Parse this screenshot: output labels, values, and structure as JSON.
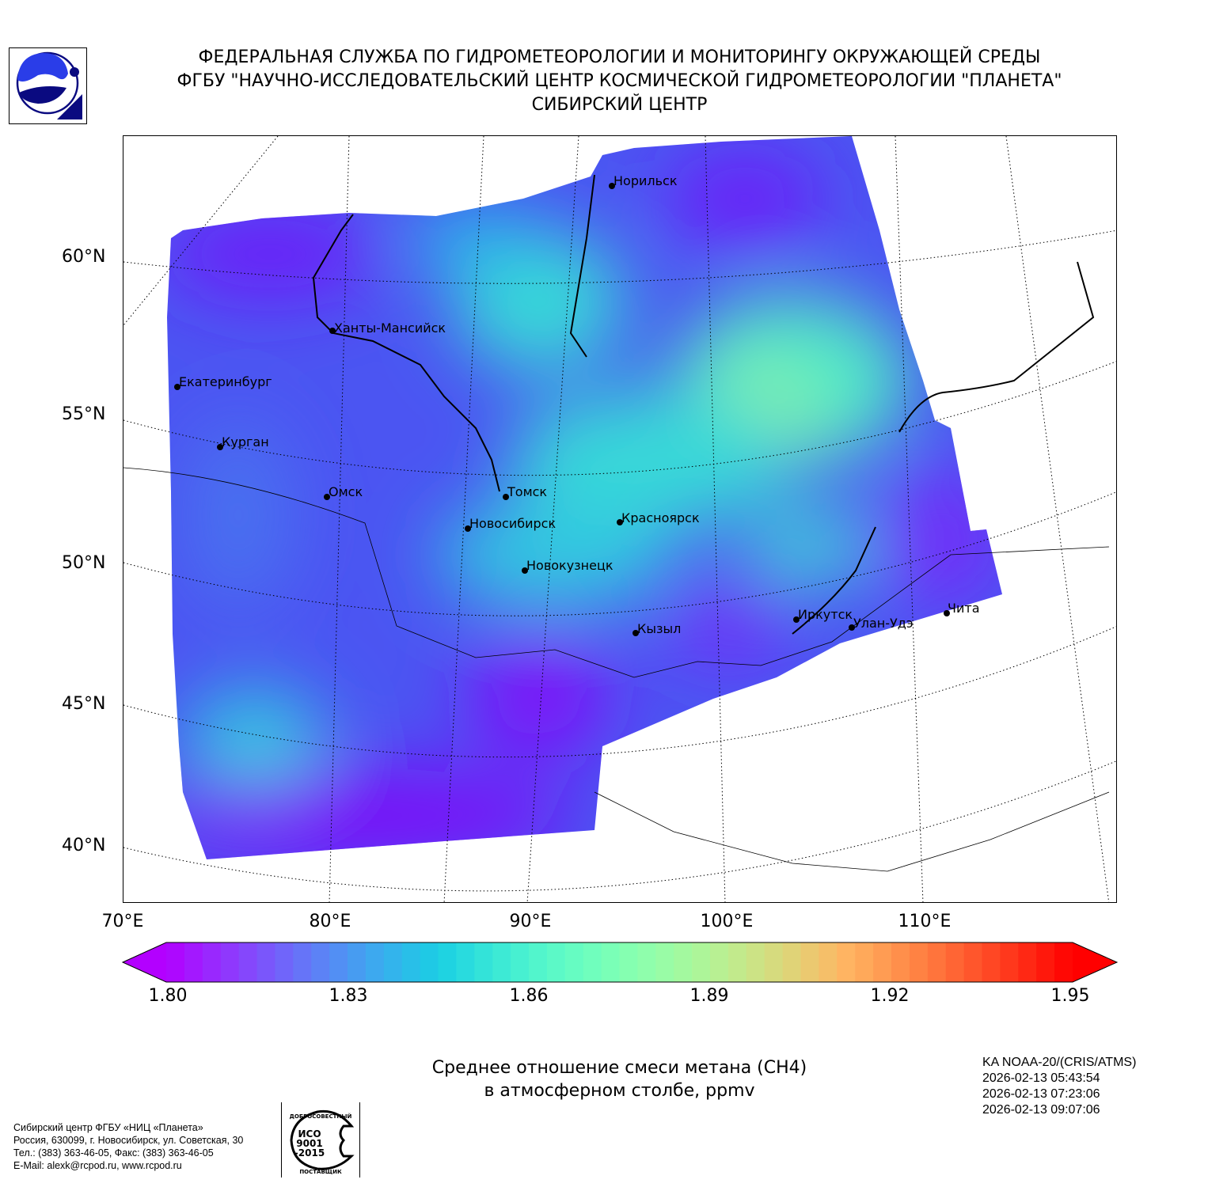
{
  "header": {
    "line1": "ФЕДЕРАЛЬНАЯ СЛУЖБА ПО ГИДРОМЕТЕОРОЛОГИИ И МОНИТОРИНГУ ОКРУЖАЮЩЕЙ СРЕДЫ",
    "line2": "ФГБУ \"НАУЧНО-ИССЛЕДОВАТЕЛЬСКИЙ ЦЕНТР КОСМИЧЕСКОЙ ГИДРОМЕТЕОРОЛОГИИ \"ПЛАНЕТА\"",
    "line3": "СИБИРСКИЙ ЦЕНТР"
  },
  "map": {
    "lat_labels": [
      "60°N",
      "55°N",
      "50°N",
      "45°N",
      "40°N"
    ],
    "lon_labels": [
      "70°E",
      "80°E",
      "90°E",
      "100°E",
      "110°E"
    ],
    "cities": [
      {
        "name": "Норильск"
      },
      {
        "name": "Ханты-Мансийск"
      },
      {
        "name": "Екатеринбург"
      },
      {
        "name": "Курган"
      },
      {
        "name": "Омск"
      },
      {
        "name": "Томск"
      },
      {
        "name": "Новосибирск"
      },
      {
        "name": "Красноярск"
      },
      {
        "name": "Новокузнецк"
      },
      {
        "name": "Кызыл"
      },
      {
        "name": "Иркутск"
      },
      {
        "name": "Улан-Удэ"
      },
      {
        "name": "Чита"
      }
    ]
  },
  "colorbar": {
    "min": 1.8,
    "max": 1.95,
    "ticks": [
      "1.80",
      "1.83",
      "1.86",
      "1.89",
      "1.92",
      "1.95"
    ],
    "extend": "both"
  },
  "caption": {
    "line1": "Среднее отношение смеси метана (CH4)",
    "line2": "в атмосферном столбе, ppmv"
  },
  "info": {
    "satellite": "KA NOAA-20/(CRIS/ATMS)",
    "times": [
      "2026-02-13 05:43:54",
      "2026-02-13 07:23:06",
      "2026-02-13 09:07:06"
    ]
  },
  "footer": {
    "lines": [
      "Сибирский центр ФГБУ «НИЦ «Планета»",
      "Россия, 630099, г. Новосибирск, ул. Советская, 30",
      "Тел.: (383) 363-46-05, Факс: (383) 363-46-05",
      "E-Mail: alexk@rcpod.ru, www.rcpod.ru"
    ],
    "iso_badge": {
      "top": "ДОБРОСОВЕСТНЫЙ",
      "middle": "ИСО 9001 -2015",
      "bottom": "ПОСТАВЩИК"
    }
  }
}
